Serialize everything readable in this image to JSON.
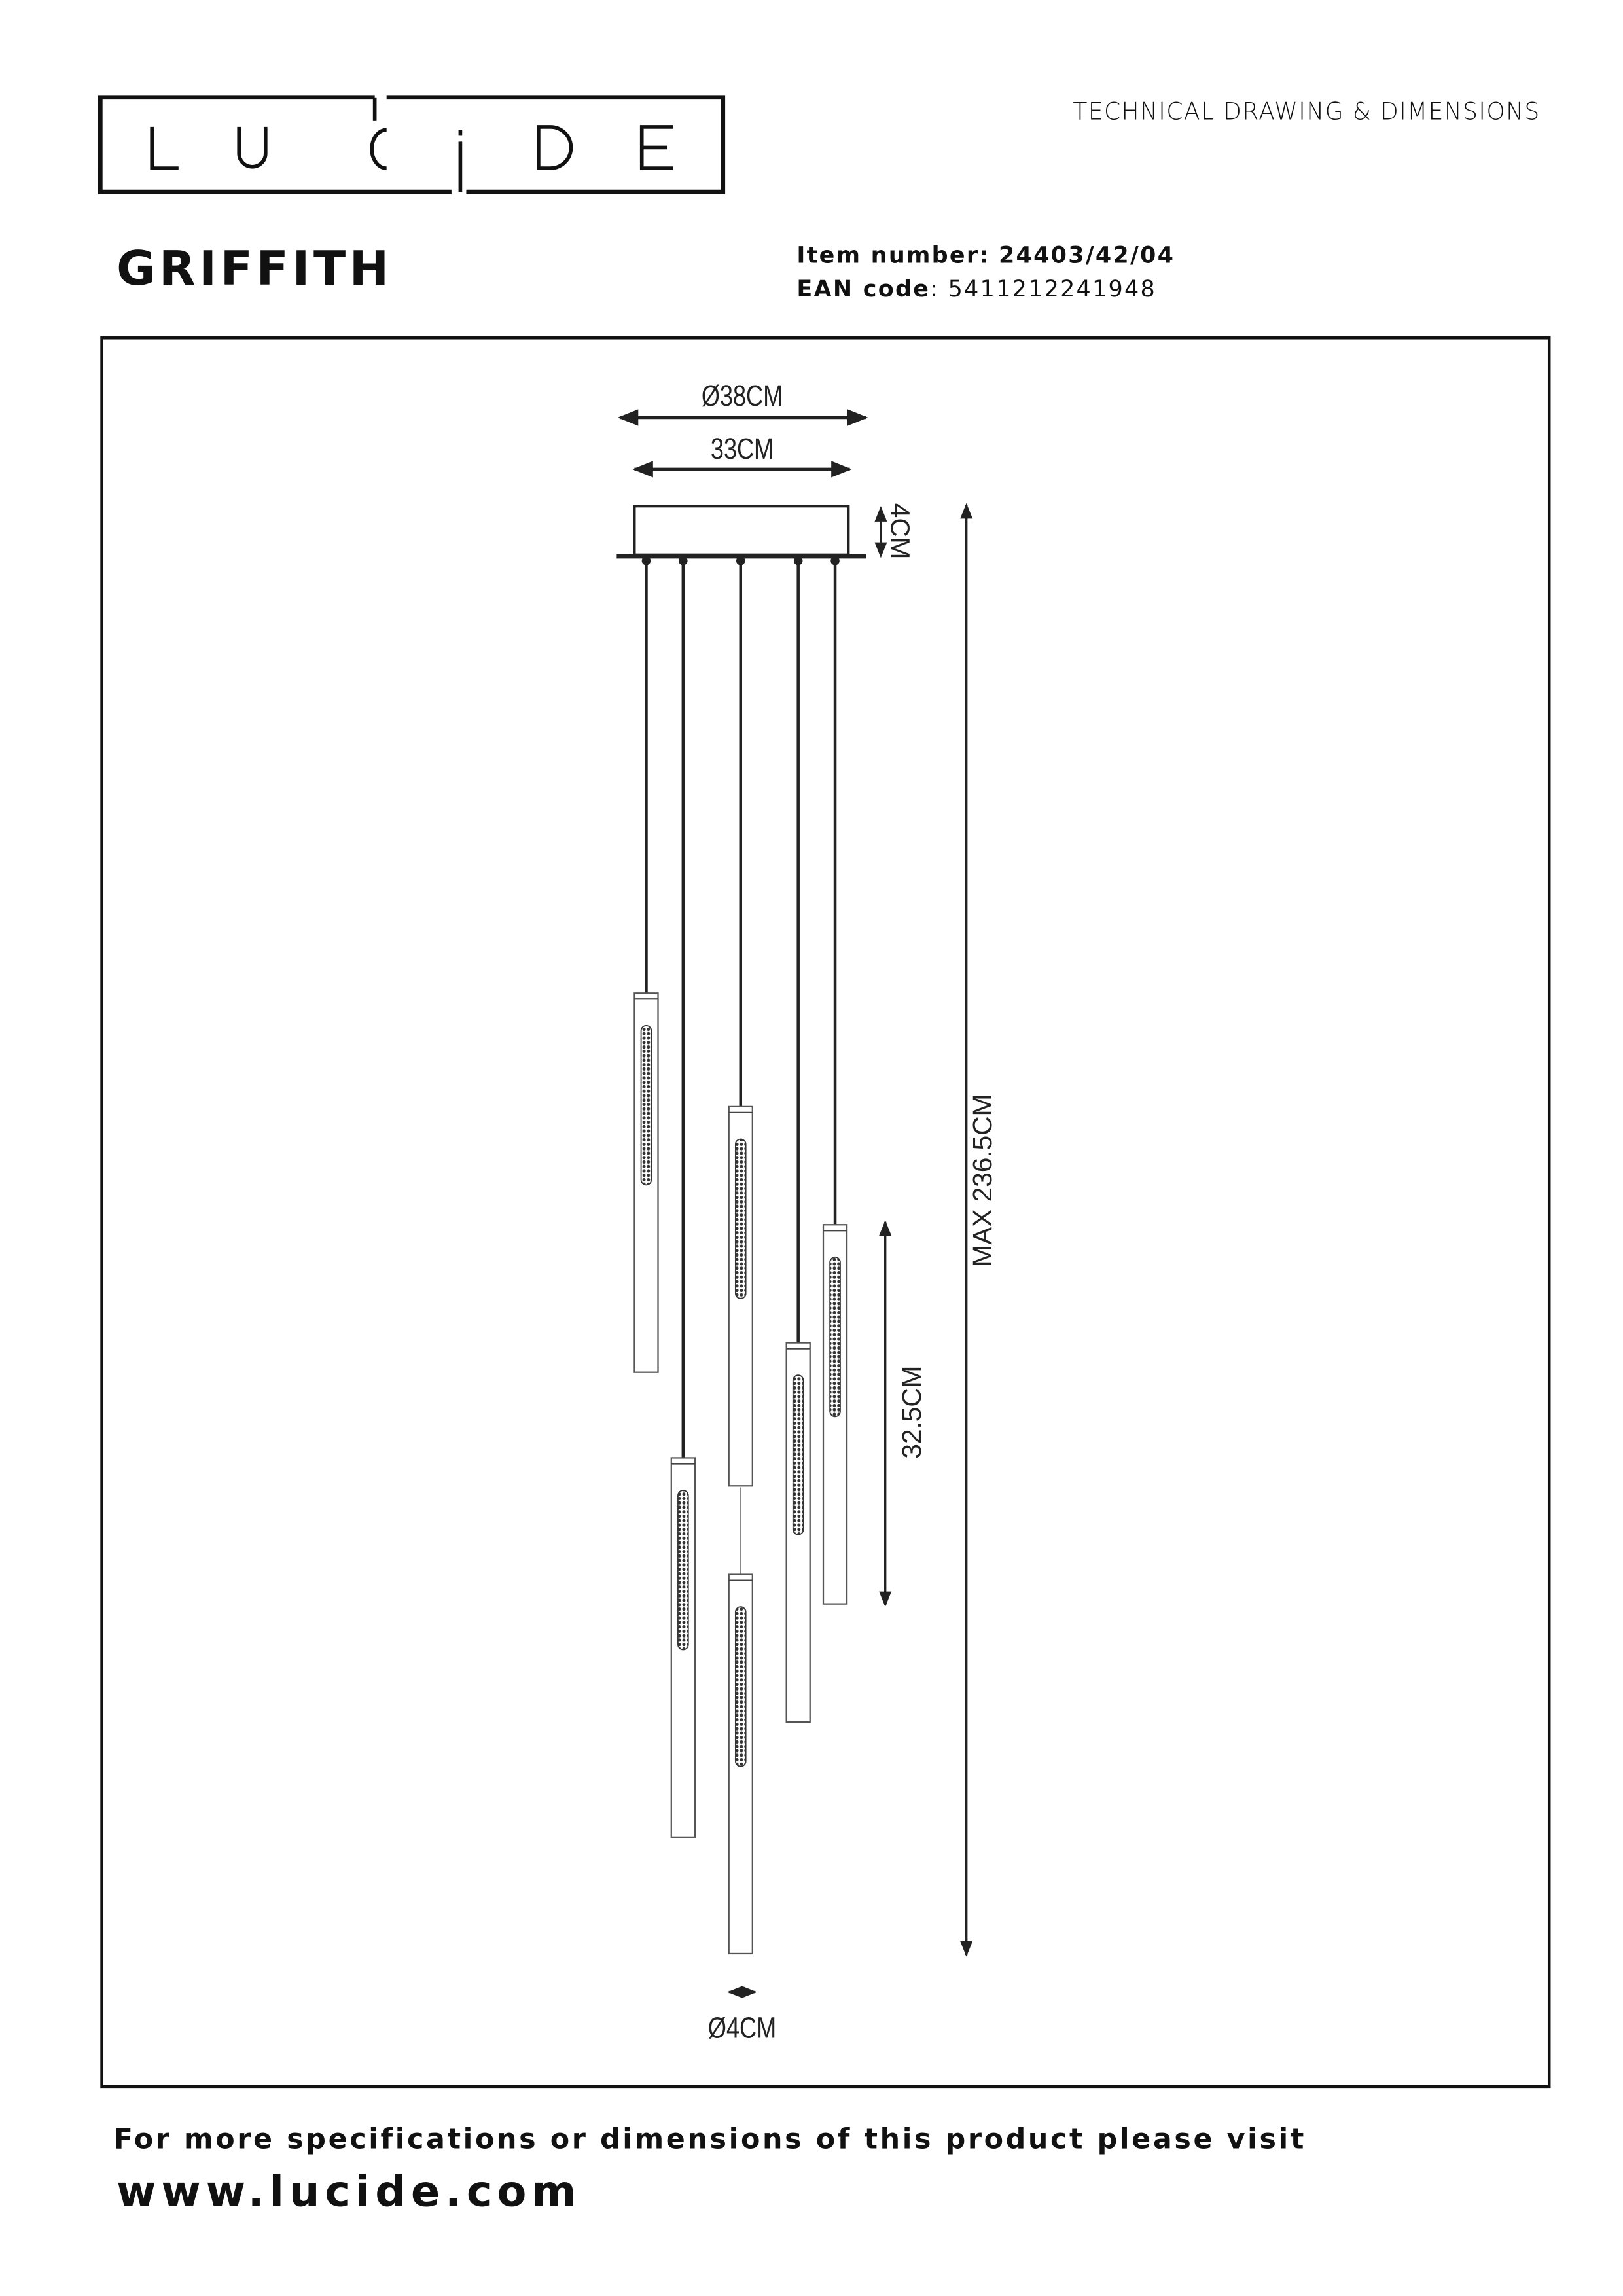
{
  "brand": {
    "logo_text": "LUCIDE"
  },
  "header": {
    "doc_type": "TECHNICAL DRAWING & DIMENSIONS"
  },
  "product": {
    "name": "GRIFFITH",
    "item_label": "Item number:",
    "item_number": "24403/42/04",
    "ean_label": "EAN code",
    "ean_code": "5411212241948"
  },
  "dimensions": {
    "outer_diameter": "Ø38CM",
    "inner_width": "33CM",
    "canopy_height": "4CM",
    "max_height": "MAX 236.5CM",
    "pendant_length": "32.5CM",
    "pendant_diameter": "Ø4CM"
  },
  "footer": {
    "note": "For more specifications or dimensions of this product please visit",
    "url": "www.lucide.com"
  }
}
